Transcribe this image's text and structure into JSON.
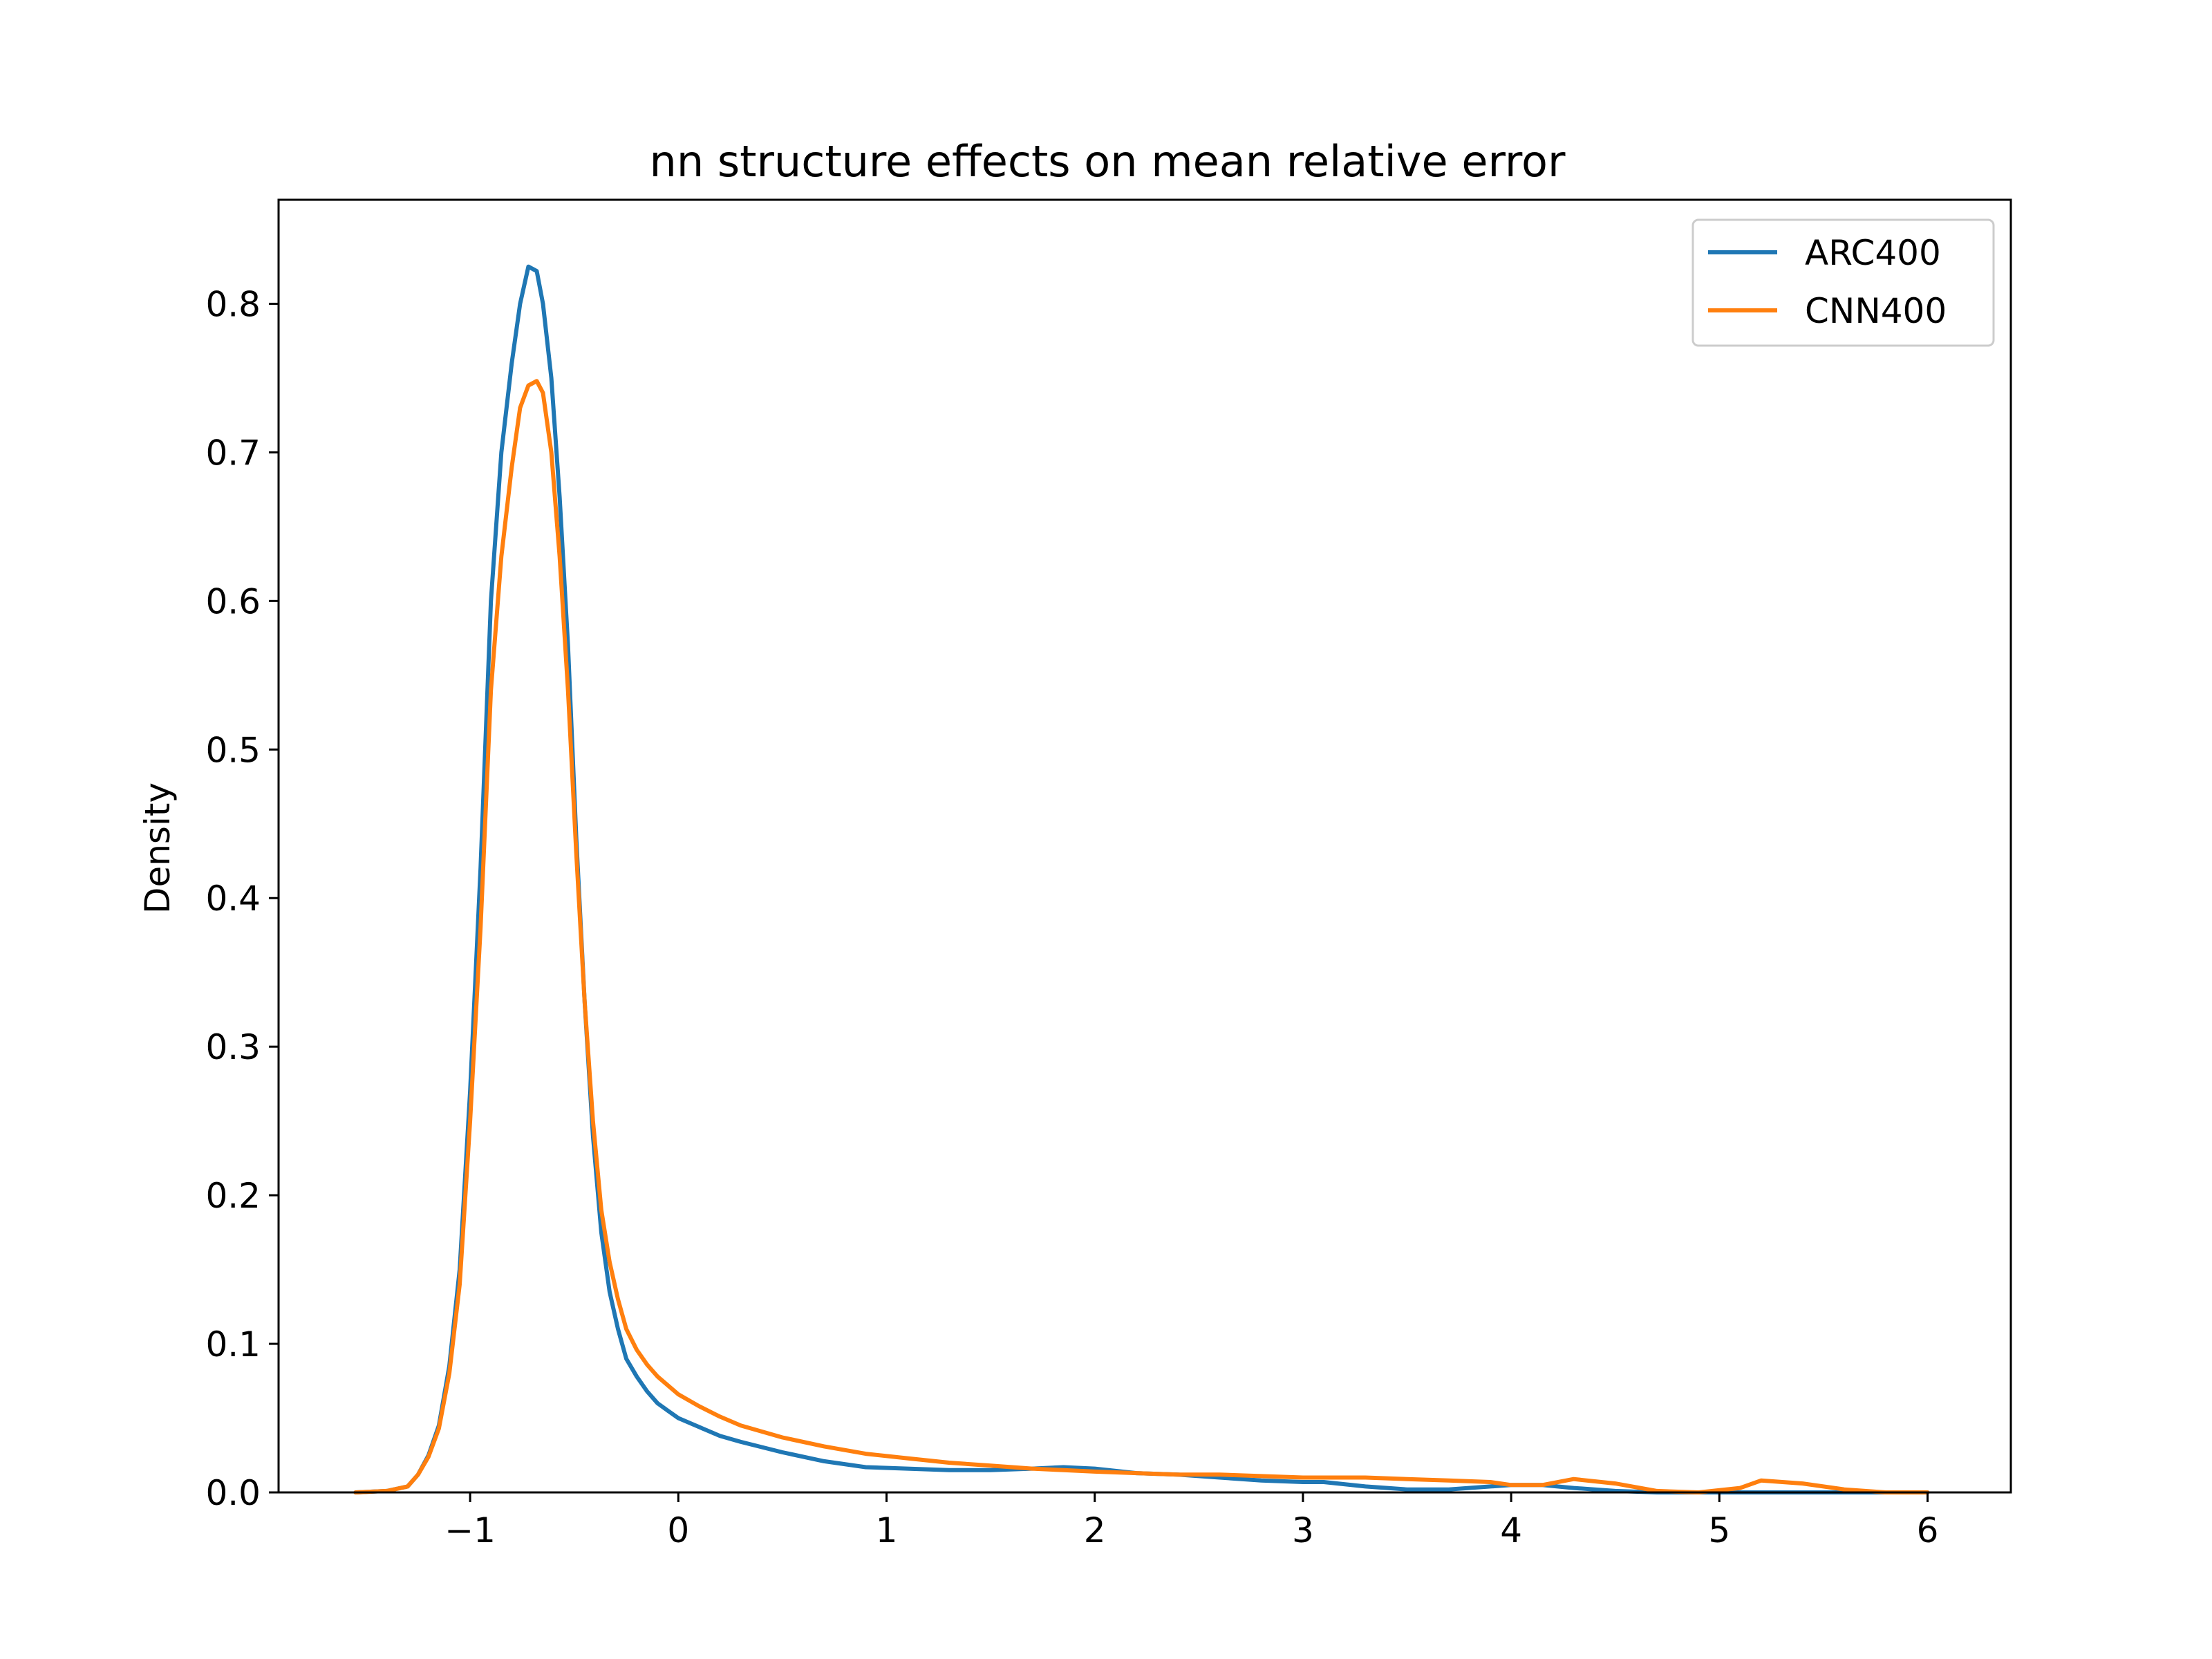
{
  "chart_data": {
    "type": "line",
    "title": "nn structure effects on mean relative error",
    "xlabel": "",
    "ylabel": "Density",
    "xlim": [
      -1.92,
      6.4
    ],
    "ylim": [
      0,
      0.87
    ],
    "xticks": [
      -1,
      0,
      1,
      2,
      3,
      4,
      5,
      6
    ],
    "xtick_labels": [
      "−1",
      "0",
      "1",
      "2",
      "3",
      "4",
      "5",
      "6"
    ],
    "yticks": [
      0.0,
      0.1,
      0.2,
      0.3,
      0.4,
      0.5,
      0.6,
      0.7,
      0.8
    ],
    "ytick_labels": [
      "0.0",
      "0.1",
      "0.2",
      "0.3",
      "0.4",
      "0.5",
      "0.6",
      "0.7",
      "0.8"
    ],
    "grid": false,
    "legend_position": "top-right",
    "series": [
      {
        "name": "ARC400",
        "color": "#1f77b4",
        "x": [
          -1.55,
          -1.4,
          -1.3,
          -1.25,
          -1.2,
          -1.15,
          -1.1,
          -1.05,
          -1.0,
          -0.95,
          -0.9,
          -0.85,
          -0.8,
          -0.76,
          -0.72,
          -0.68,
          -0.65,
          -0.61,
          -0.57,
          -0.53,
          -0.49,
          -0.45,
          -0.41,
          -0.37,
          -0.33,
          -0.29,
          -0.25,
          -0.2,
          -0.15,
          -0.1,
          -0.05,
          0.0,
          0.1,
          0.2,
          0.3,
          0.5,
          0.7,
          0.9,
          1.1,
          1.3,
          1.5,
          1.7,
          1.85,
          2.0,
          2.2,
          2.4,
          2.6,
          2.8,
          3.0,
          3.1,
          3.3,
          3.5,
          3.7,
          3.9,
          4.0,
          4.15,
          4.3,
          4.5,
          4.7,
          4.9,
          5.1,
          5.2,
          5.4,
          5.6,
          5.8,
          6.0
        ],
        "y": [
          0.0,
          0.001,
          0.004,
          0.012,
          0.025,
          0.045,
          0.085,
          0.15,
          0.27,
          0.42,
          0.6,
          0.7,
          0.76,
          0.8,
          0.825,
          0.822,
          0.8,
          0.75,
          0.67,
          0.57,
          0.44,
          0.33,
          0.24,
          0.175,
          0.135,
          0.11,
          0.09,
          0.078,
          0.068,
          0.06,
          0.055,
          0.05,
          0.044,
          0.038,
          0.034,
          0.027,
          0.021,
          0.017,
          0.016,
          0.015,
          0.015,
          0.016,
          0.017,
          0.016,
          0.013,
          0.012,
          0.01,
          0.008,
          0.007,
          0.007,
          0.004,
          0.002,
          0.002,
          0.004,
          0.005,
          0.005,
          0.003,
          0.001,
          0.0,
          0.0,
          0.0,
          0.0,
          0.0,
          0.0,
          0.0,
          0.0
        ]
      },
      {
        "name": "CNN400",
        "color": "#ff7f0e",
        "x": [
          -1.55,
          -1.4,
          -1.3,
          -1.25,
          -1.2,
          -1.15,
          -1.1,
          -1.05,
          -1.0,
          -0.95,
          -0.9,
          -0.85,
          -0.8,
          -0.76,
          -0.72,
          -0.68,
          -0.65,
          -0.61,
          -0.57,
          -0.53,
          -0.49,
          -0.45,
          -0.41,
          -0.37,
          -0.33,
          -0.29,
          -0.25,
          -0.2,
          -0.15,
          -0.1,
          -0.05,
          0.0,
          0.1,
          0.2,
          0.3,
          0.5,
          0.7,
          0.9,
          1.1,
          1.3,
          1.5,
          1.7,
          1.85,
          2.0,
          2.2,
          2.4,
          2.6,
          2.8,
          3.0,
          3.1,
          3.3,
          3.5,
          3.7,
          3.9,
          4.0,
          4.15,
          4.3,
          4.5,
          4.7,
          4.9,
          5.1,
          5.2,
          5.4,
          5.6,
          5.8,
          6.0
        ],
        "y": [
          0.0,
          0.001,
          0.004,
          0.012,
          0.024,
          0.043,
          0.08,
          0.14,
          0.25,
          0.38,
          0.54,
          0.63,
          0.69,
          0.73,
          0.745,
          0.748,
          0.74,
          0.7,
          0.63,
          0.54,
          0.43,
          0.33,
          0.25,
          0.19,
          0.155,
          0.13,
          0.11,
          0.096,
          0.086,
          0.078,
          0.072,
          0.066,
          0.058,
          0.051,
          0.045,
          0.037,
          0.031,
          0.026,
          0.023,
          0.02,
          0.018,
          0.016,
          0.015,
          0.014,
          0.013,
          0.012,
          0.012,
          0.011,
          0.01,
          0.01,
          0.01,
          0.009,
          0.008,
          0.007,
          0.005,
          0.005,
          0.009,
          0.006,
          0.001,
          0.0,
          0.003,
          0.008,
          0.006,
          0.002,
          0.0,
          0.0
        ]
      }
    ]
  }
}
